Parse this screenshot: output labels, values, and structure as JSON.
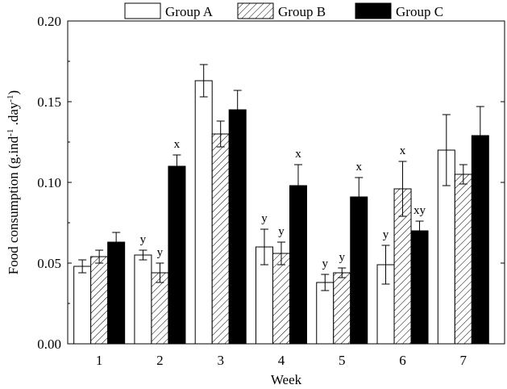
{
  "chart_data": {
    "type": "bar",
    "xlabel": "Week",
    "ylabel": {
      "part1": "Food consumption (g.ind",
      "sup1": "-1",
      "part2": " .day",
      "sup2": "-1",
      "part3": ")"
    },
    "ylim": [
      0,
      0.2
    ],
    "yticks": [
      "0.00",
      "0.05",
      "0.10",
      "0.15",
      "0.20"
    ],
    "categories": [
      "1",
      "2",
      "3",
      "4",
      "5",
      "6",
      "7"
    ],
    "legend_position": "top",
    "series": [
      {
        "name": "Group A",
        "fill": "white",
        "values": [
          0.048,
          0.055,
          0.163,
          0.06,
          0.038,
          0.049,
          0.12
        ],
        "errors": [
          0.004,
          0.003,
          0.01,
          0.011,
          0.005,
          0.012,
          0.022
        ],
        "labels": [
          "",
          "y",
          "",
          "y",
          "y",
          "y",
          ""
        ]
      },
      {
        "name": "Group B",
        "fill": "hatched",
        "values": [
          0.054,
          0.044,
          0.13,
          0.056,
          0.044,
          0.096,
          0.105
        ],
        "errors": [
          0.004,
          0.006,
          0.008,
          0.007,
          0.003,
          0.017,
          0.006
        ],
        "labels": [
          "",
          "y",
          "",
          "y",
          "y",
          "x",
          ""
        ]
      },
      {
        "name": "Group C",
        "fill": "black",
        "values": [
          0.063,
          0.11,
          0.145,
          0.098,
          0.091,
          0.07,
          0.129
        ],
        "errors": [
          0.006,
          0.007,
          0.012,
          0.013,
          0.012,
          0.006,
          0.018
        ],
        "labels": [
          "",
          "x",
          "",
          "x",
          "x",
          "xy",
          ""
        ]
      }
    ]
  }
}
